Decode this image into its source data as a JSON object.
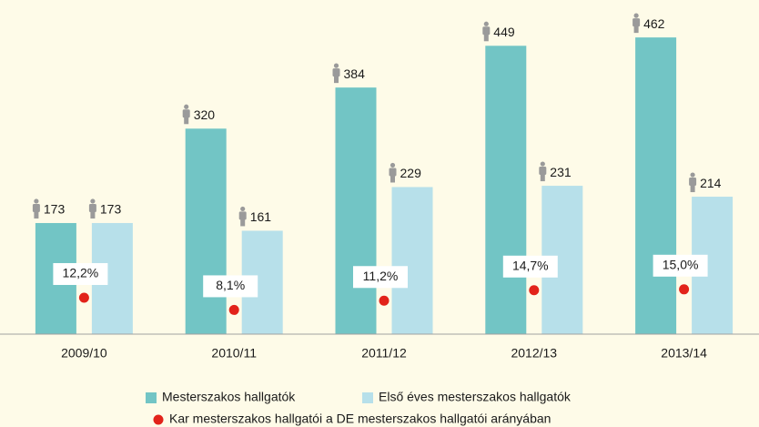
{
  "chart_data": {
    "type": "bar",
    "categories": [
      "2009/10",
      "2010/11",
      "2011/12",
      "2012/13",
      "2013/14"
    ],
    "series": [
      {
        "name": "Mesterszakos hallgatók",
        "color": "#72c5c5",
        "values": [
          173,
          320,
          384,
          449,
          462
        ]
      },
      {
        "name": "Első éves mesterszakos hallgatók",
        "color": "#b7e0ea",
        "values": [
          173,
          161,
          229,
          231,
          214
        ]
      },
      {
        "name": "Kar mesterszakos hallgatói a DE mesterszakos hallgatói arányában",
        "color": "#e2231a",
        "axis": "y2",
        "values": [
          12.2,
          8.1,
          11.2,
          14.7,
          15.0
        ],
        "value_labels": [
          "12,2%",
          "8,1%",
          "11,2%",
          "14,7%",
          "15,0%"
        ]
      }
    ],
    "ylim": [
      0,
      465
    ],
    "y2lim": [
      0,
      100
    ]
  }
}
